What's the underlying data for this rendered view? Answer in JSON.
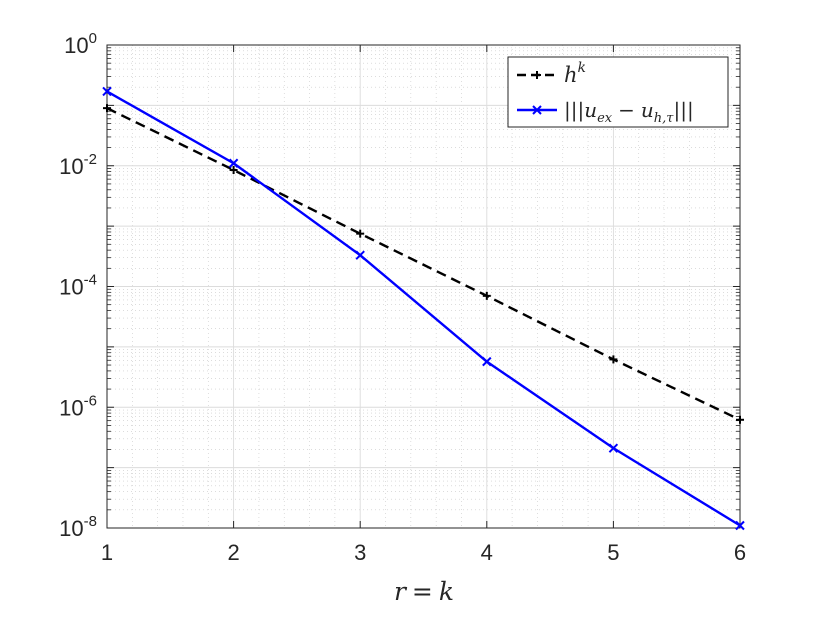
{
  "chart_data": {
    "type": "line",
    "x": [
      1,
      2,
      3,
      4,
      5,
      6
    ],
    "xlabel": "r = k",
    "yscale": "log",
    "xlim": [
      1,
      6
    ],
    "ylim": [
      1e-08,
      1
    ],
    "xticks": [
      "1",
      "2",
      "3",
      "4",
      "5",
      "6"
    ],
    "yticks": [
      {
        "base": "10",
        "exp": "0"
      },
      {
        "base": "10",
        "exp": "-2"
      },
      {
        "base": "10",
        "exp": "-4"
      },
      {
        "base": "10",
        "exp": "-6"
      },
      {
        "base": "10",
        "exp": "-8"
      }
    ],
    "grid": true,
    "minor_grid": true,
    "legend_position": "top-right",
    "series": [
      {
        "name": "h^k",
        "color": "#000000",
        "line_style": "dashed",
        "marker": "plus",
        "values": [
          0.09,
          0.0085,
          0.00075,
          7e-05,
          6.2e-06,
          6.2e-07
        ]
      },
      {
        "name": "|||u_ex − u_h,τ|||",
        "color": "#0000ff",
        "line_style": "solid",
        "marker": "x",
        "values": [
          0.17,
          0.011,
          0.00033,
          5.7e-06,
          2.1e-07,
          1.1e-08
        ]
      }
    ]
  }
}
